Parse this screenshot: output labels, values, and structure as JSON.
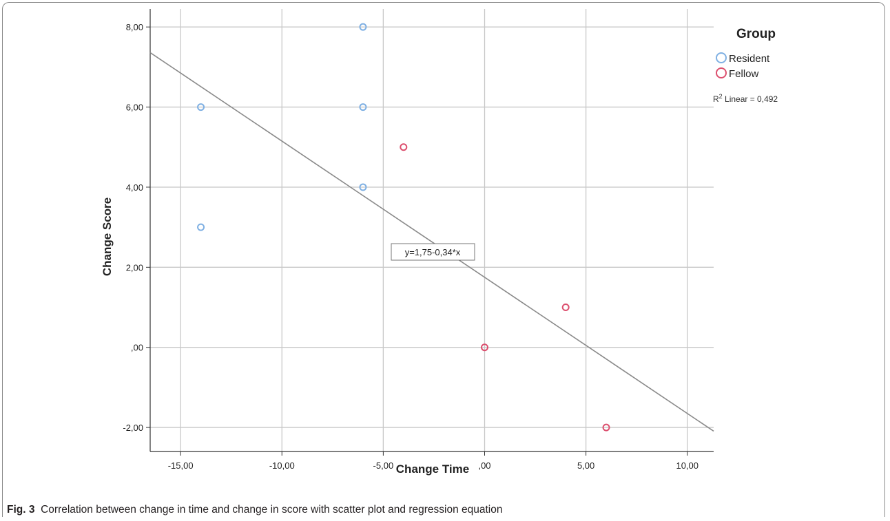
{
  "figure": {
    "caption_label": "Fig. 3",
    "caption_text": "Correlation between change in time and change in score with scatter plot and regression equation"
  },
  "chart_data": {
    "type": "scatter",
    "xlabel": "Change  Time",
    "ylabel": "Change  Score",
    "xlim": [
      -16.5,
      11.3
    ],
    "ylim": [
      -2.6,
      8.45
    ],
    "x_ticks": [
      -15,
      -10,
      -5,
      0,
      5,
      10
    ],
    "x_tick_labels": [
      "-15,00",
      "-10,00",
      "-5,00",
      ",00",
      "5,00",
      "10,00"
    ],
    "y_ticks": [
      -2,
      0,
      2,
      4,
      6,
      8
    ],
    "y_tick_labels": [
      "-2,00",
      ",00",
      "2,00",
      "4,00",
      "6,00",
      "8,00"
    ],
    "grid": true,
    "legend_title": "Group",
    "legend_position": "right",
    "series": [
      {
        "name": "Resident",
        "color": "#7fb0e3",
        "points": [
          {
            "x": -14,
            "y": 6
          },
          {
            "x": -14,
            "y": 3
          },
          {
            "x": -6,
            "y": 8
          },
          {
            "x": -6,
            "y": 6
          },
          {
            "x": -6,
            "y": 4
          }
        ]
      },
      {
        "name": "Fellow",
        "color": "#dc4f6e",
        "points": [
          {
            "x": -4,
            "y": 5
          },
          {
            "x": 0,
            "y": 0
          },
          {
            "x": 4,
            "y": 1
          },
          {
            "x": 6,
            "y": -2
          }
        ]
      }
    ],
    "regression": {
      "intercept": 1.75,
      "slope": -0.34,
      "equation_label": "y=1,75-0,34*x",
      "r2_prefix": "R",
      "r2_sup": "2",
      "r2_text": " Linear = 0,492",
      "line_color": "#8a8a8a"
    }
  }
}
